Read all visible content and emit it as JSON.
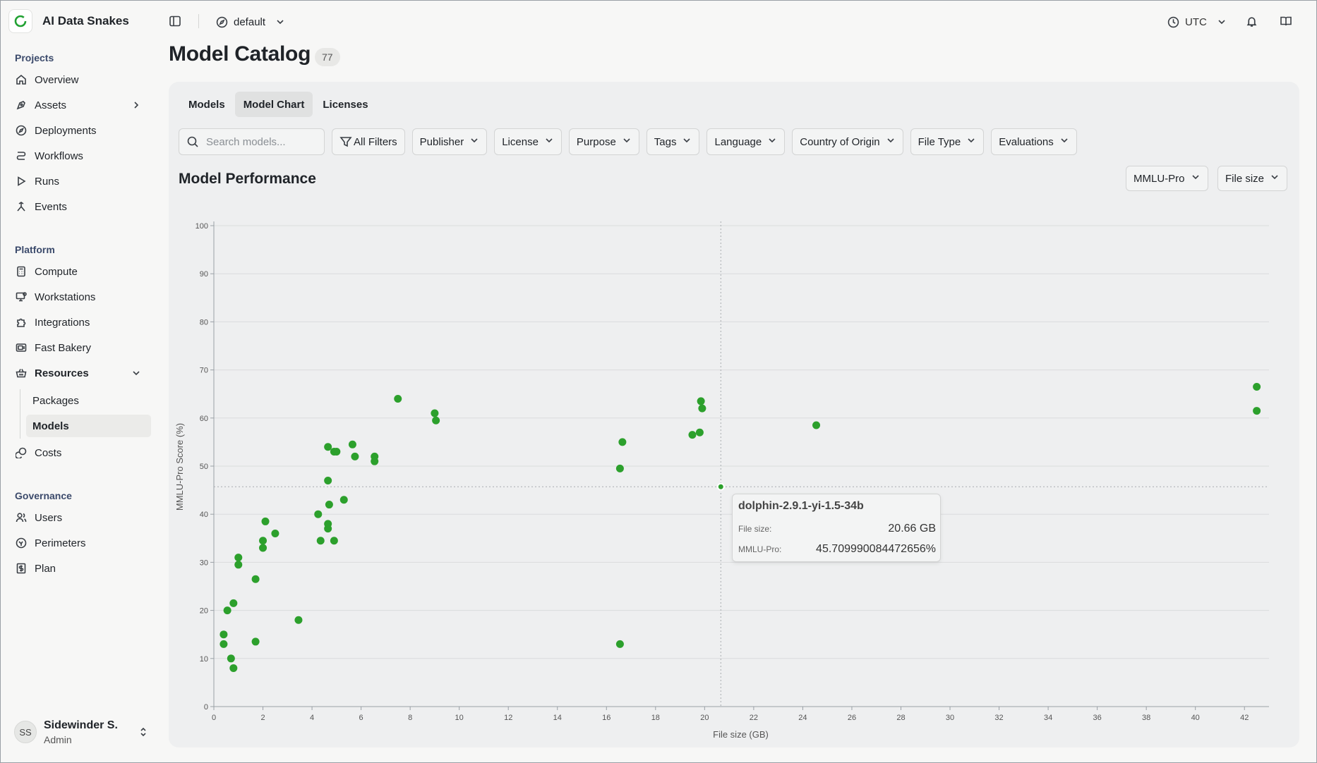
{
  "app": {
    "name": "AI Data Snakes"
  },
  "topbar": {
    "project": "default",
    "timezone": "UTC"
  },
  "sidebar": {
    "projects_label": "Projects",
    "projects_items": [
      {
        "label": "Overview",
        "icon": "home-icon"
      },
      {
        "label": "Assets",
        "icon": "pen-tool-icon"
      },
      {
        "label": "Deployments",
        "icon": "compass-icon"
      },
      {
        "label": "Workflows",
        "icon": "workflow-icon"
      },
      {
        "label": "Runs",
        "icon": "play-icon"
      },
      {
        "label": "Events",
        "icon": "events-icon"
      }
    ],
    "platform_label": "Platform",
    "platform_items": [
      {
        "label": "Compute",
        "icon": "calculator-icon"
      },
      {
        "label": "Workstations",
        "icon": "monitor-icon"
      },
      {
        "label": "Integrations",
        "icon": "puzzle-icon"
      },
      {
        "label": "Fast Bakery",
        "icon": "package-icon"
      },
      {
        "label": "Resources",
        "icon": "basket-icon"
      }
    ],
    "resources_sub": [
      {
        "label": "Packages"
      },
      {
        "label": "Models"
      }
    ],
    "costs_label": "Costs",
    "governance_label": "Governance",
    "governance_items": [
      {
        "label": "Users",
        "icon": "users-icon"
      },
      {
        "label": "Perimeters",
        "icon": "perimeter-icon"
      },
      {
        "label": "Plan",
        "icon": "dollar-icon"
      }
    ],
    "user": {
      "initials": "SS",
      "name": "Sidewinder S.",
      "role": "Admin"
    }
  },
  "page": {
    "title": "Model Catalog",
    "count": "77"
  },
  "tabs": [
    "Models",
    "Model Chart",
    "Licenses"
  ],
  "active_tab": "Model Chart",
  "search": {
    "placeholder": "Search models...",
    "value": ""
  },
  "filters": [
    "All Filters",
    "Publisher",
    "License",
    "Purpose",
    "Tags",
    "Language",
    "Country of Origin",
    "File Type",
    "Evaluations"
  ],
  "chart_section": {
    "title": "Model Performance",
    "metric": "MMLU-Pro",
    "x_axis_select": "File size"
  },
  "tooltip": {
    "model": "dolphin-2.9.1-yi-1.5-34b",
    "file_size_label": "File size:",
    "file_size_value": "20.66 GB",
    "score_label": "MMLU-Pro:",
    "score_value": "45.709990084472656%"
  },
  "colors": {
    "accent": "#2ca02c",
    "brand": "#21a132"
  },
  "chart_data": {
    "type": "scatter",
    "xlabel": "File size (GB)",
    "ylabel": "MMLU-Pro Score (%)",
    "xlim": [
      0,
      43
    ],
    "ylim": [
      0,
      100
    ],
    "xticks": [
      0,
      2,
      4,
      6,
      8,
      10,
      12,
      14,
      16,
      18,
      20,
      22,
      24,
      26,
      28,
      30,
      32,
      34,
      36,
      38,
      40,
      42
    ],
    "yticks": [
      0,
      10,
      20,
      30,
      40,
      50,
      60,
      70,
      80,
      90,
      100
    ],
    "grid": "horizontal",
    "crosshair": {
      "x": 20.66,
      "y": 45.71
    },
    "series": [
      {
        "x": [
          0.4,
          0.4,
          0.55,
          0.7,
          0.8,
          0.8,
          1.0,
          1.0,
          1.7,
          1.7,
          2.0,
          2.0,
          2.1,
          2.5,
          3.45,
          4.25,
          4.35,
          4.65,
          4.65,
          4.65,
          4.65,
          4.7,
          4.9,
          4.9,
          5.0,
          5.3,
          5.65,
          5.75,
          6.55,
          6.55,
          7.5,
          9.0,
          9.05,
          16.55,
          16.55,
          16.65,
          19.5,
          19.8,
          19.85,
          19.9,
          20.66,
          24.55,
          42.5,
          42.5
        ],
        "y": [
          15.0,
          13.0,
          20.0,
          10.0,
          8.0,
          21.5,
          31.0,
          29.5,
          26.5,
          13.5,
          34.5,
          33.0,
          38.5,
          36.0,
          18.0,
          40.0,
          34.5,
          54.0,
          47.0,
          38.0,
          37.0,
          42.0,
          34.5,
          53.0,
          53.0,
          43.0,
          54.5,
          52.0,
          52.0,
          51.0,
          64.0,
          61.0,
          59.5,
          49.5,
          13.0,
          55.0,
          56.5,
          57.0,
          63.5,
          62.0,
          45.71,
          58.5,
          66.5,
          61.5
        ]
      }
    ]
  }
}
